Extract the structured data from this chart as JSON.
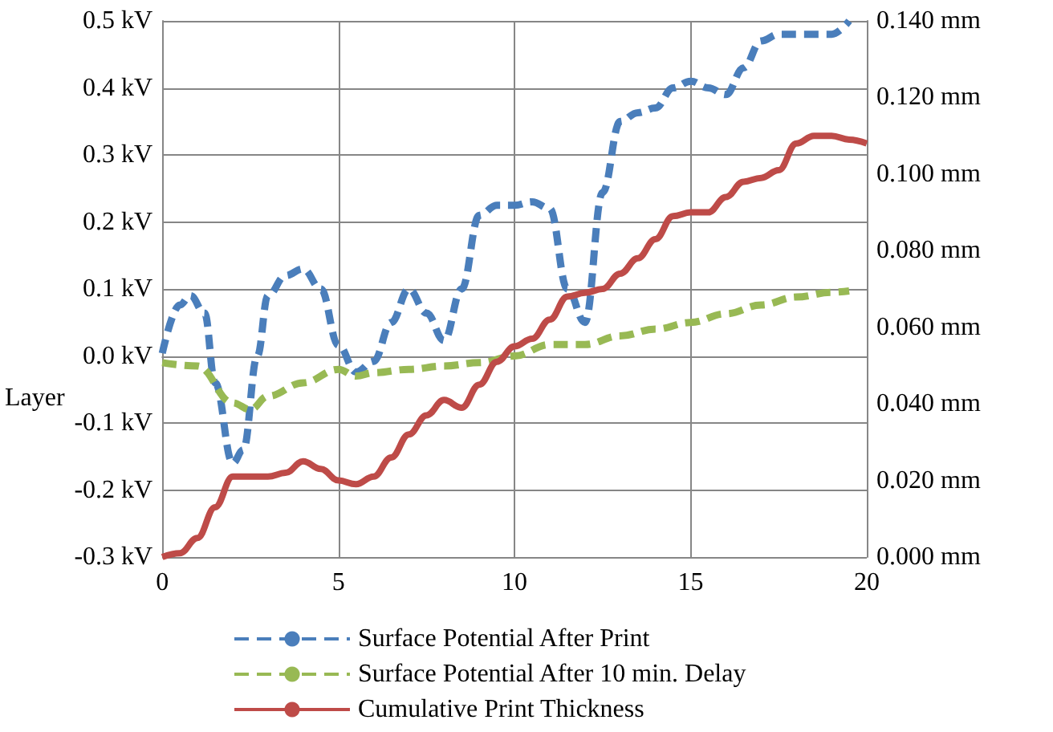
{
  "chart_data": {
    "type": "line",
    "xlabel": "Layer",
    "x": [
      0,
      0.5,
      0.8,
      1.2,
      1.5,
      2,
      2.3,
      2.7,
      3,
      3.5,
      4,
      4.5,
      5,
      5.5,
      6,
      6.5,
      7,
      7.5,
      8,
      8.5,
      9,
      9.5,
      10,
      10.5,
      11,
      11.5,
      12,
      12.5,
      13,
      13.5,
      14,
      14.5,
      15,
      15.5,
      16,
      16.5,
      17,
      17.5,
      18,
      18.5,
      19,
      19.5
    ],
    "series": [
      {
        "name": "Surface Potential After Print",
        "color": "#4a7ebb",
        "line_style": "dashed",
        "values": [
          0.004,
          0.076,
          0.09,
          0.064,
          -0.04,
          -0.16,
          -0.14,
          0.0,
          0.09,
          0.12,
          0.13,
          0.1,
          0.016,
          -0.024,
          -0.008,
          0.05,
          0.1,
          0.064,
          0.023,
          0.1,
          0.21,
          0.225,
          0.225,
          0.23,
          0.22,
          0.1,
          0.05,
          0.244,
          0.35,
          0.363,
          0.37,
          0.4,
          0.41,
          0.4,
          0.39,
          0.43,
          0.47,
          0.48,
          0.48,
          0.48,
          0.48,
          0.5
        ]
      },
      {
        "name": "Surface Potential After 10 min. Delay",
        "color": "#98b954",
        "line_style": "dashed",
        "x": [
          0,
          1,
          2,
          2.5,
          3,
          4,
          5,
          5.5,
          6,
          7,
          8,
          9,
          10,
          11,
          12,
          13,
          14,
          15,
          16,
          17,
          18,
          19,
          19.5
        ],
        "values": [
          -0.01,
          -0.015,
          -0.07,
          -0.08,
          -0.06,
          -0.04,
          -0.02,
          -0.03,
          -0.025,
          -0.02,
          -0.015,
          -0.01,
          0.0,
          0.017,
          0.017,
          0.03,
          0.04,
          0.05,
          0.063,
          0.076,
          0.088,
          0.095,
          0.097
        ]
      },
      {
        "name": "Cumulative Print Thickness",
        "color": "#be4b48",
        "line_style": "solid",
        "axis": "y2",
        "x": [
          0,
          0.5,
          1,
          1.5,
          2,
          2.5,
          3,
          3.5,
          4,
          4.5,
          5,
          5.5,
          6,
          6.5,
          7,
          7.5,
          8,
          8.5,
          9,
          9.5,
          10,
          10.5,
          11,
          11.5,
          12,
          12.5,
          13,
          13.5,
          14,
          14.5,
          15,
          15.5,
          16,
          16.5,
          17,
          17.5,
          18,
          18.5,
          19,
          19.5,
          20
        ],
        "values": [
          0,
          0.001,
          0.005,
          0.013,
          0.021,
          0.021,
          0.021,
          0.022,
          0.025,
          0.023,
          0.02,
          0.019,
          0.021,
          0.026,
          0.032,
          0.037,
          0.041,
          0.039,
          0.045,
          0.051,
          0.055,
          0.057,
          0.062,
          0.068,
          0.069,
          0.07,
          0.074,
          0.078,
          0.083,
          0.089,
          0.09,
          0.09,
          0.094,
          0.098,
          0.099,
          0.101,
          0.108,
          0.11,
          0.11,
          0.109,
          0.108
        ]
      }
    ],
    "xlim": [
      0,
      20
    ],
    "xticks": [
      0,
      5,
      10,
      15,
      20
    ],
    "ylim": [
      -0.3,
      0.5
    ],
    "yticks": [
      {
        "value": -0.3,
        "label": "-0.3 kV"
      },
      {
        "value": -0.2,
        "label": "-0.2 kV"
      },
      {
        "value": -0.1,
        "label": "-0.1 kV"
      },
      {
        "value": 0.0,
        "label": "0.0 kV"
      },
      {
        "value": 0.1,
        "label": "0.1 kV"
      },
      {
        "value": 0.2,
        "label": "0.2 kV"
      },
      {
        "value": 0.3,
        "label": "0.3 kV"
      },
      {
        "value": 0.4,
        "label": "0.4 kV"
      },
      {
        "value": 0.5,
        "label": "0.5 kV"
      }
    ],
    "y2lim": [
      0,
      0.14
    ],
    "y2ticks": [
      {
        "value": 0,
        "label": "0.000 mm"
      },
      {
        "value": 0.02,
        "label": "0.020 mm"
      },
      {
        "value": 0.04,
        "label": "0.040 mm"
      },
      {
        "value": 0.06,
        "label": "0.060 mm"
      },
      {
        "value": 0.08,
        "label": "0.080 mm"
      },
      {
        "value": 0.1,
        "label": "0.100 mm"
      },
      {
        "value": 0.12,
        "label": "0.120 mm"
      },
      {
        "value": 0.14,
        "label": "0.140 mm"
      }
    ],
    "grid": true,
    "legend": "bottom",
    "marker": "none"
  }
}
